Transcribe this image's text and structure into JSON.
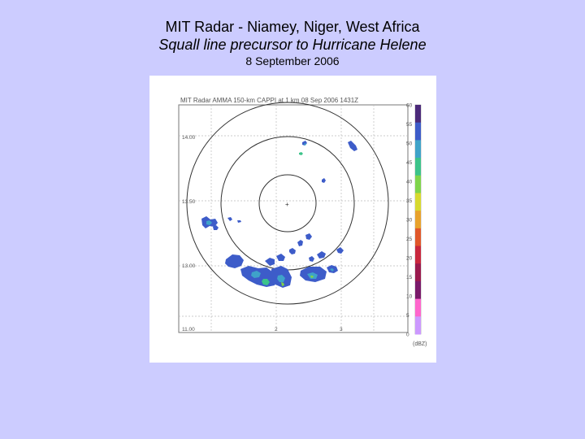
{
  "slide": {
    "title": "MIT Radar - Niamey, Niger, West Africa",
    "subtitle": "Squall line precursor to Hurricane Helene",
    "date": "8 September 2006"
  },
  "radar": {
    "header": "MIT Radar AMMA 150-km CAPPI at 1 km 08 Sep 2006 1431Z",
    "y_labels": [
      "14.00",
      "13.50",
      "13.00",
      "11.00"
    ],
    "x_labels": [
      "2",
      "3"
    ],
    "colorbar": {
      "ticks": [
        "60",
        "55",
        "50",
        "45",
        "40",
        "35",
        "30",
        "25",
        "20",
        "15",
        "10",
        "5",
        "0"
      ],
      "unit": "(dBZ)",
      "colors": [
        "#4b2a7a",
        "#3d5cc9",
        "#3fa3c9",
        "#3cc38a",
        "#7fd44a",
        "#d7d92f",
        "#e8a22c",
        "#e0572a",
        "#c9273d",
        "#9a1a4d",
        "#7a1a6a",
        "#ff66cc",
        "#cc99ff"
      ]
    }
  }
}
